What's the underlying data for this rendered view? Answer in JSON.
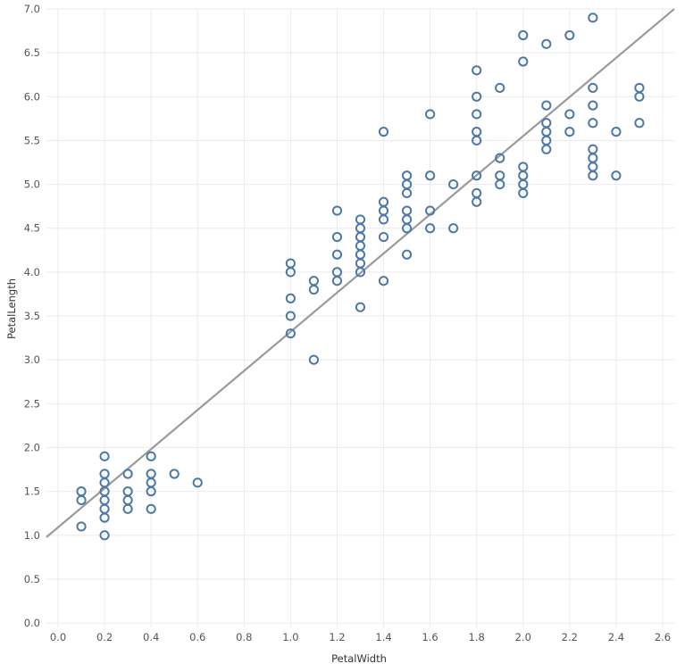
{
  "chart_data": {
    "type": "scatter",
    "title": "",
    "xlabel": "PetalWidth",
    "ylabel": "PetalLength",
    "xlim": [
      -0.05,
      2.65
    ],
    "ylim": [
      -0.05,
      7.0
    ],
    "x_ticks": [
      "0.0",
      "0.2",
      "0.4",
      "0.6",
      "0.8",
      "1.0",
      "1.2",
      "1.4",
      "1.6",
      "1.8",
      "2.0",
      "2.2",
      "2.4",
      "2.6"
    ],
    "y_ticks": [
      "0.0",
      "0.5",
      "1.0",
      "1.5",
      "2.0",
      "2.5",
      "3.0",
      "3.5",
      "4.0",
      "4.5",
      "5.0",
      "5.5",
      "6.0",
      "6.5",
      "7.0"
    ],
    "grid": true,
    "marker": "open-circle",
    "colors": {
      "points": "#4e79a7",
      "trend_line": "#9a9a9a",
      "grid": "#ebebeb"
    },
    "trend_line": {
      "slope": 2.23,
      "intercept": 1.09
    },
    "points": [
      [
        0.1,
        1.5
      ],
      [
        0.1,
        1.4
      ],
      [
        0.1,
        1.1
      ],
      [
        0.2,
        1.9
      ],
      [
        0.2,
        1.7
      ],
      [
        0.2,
        1.6
      ],
      [
        0.2,
        1.5
      ],
      [
        0.2,
        1.4
      ],
      [
        0.2,
        1.3
      ],
      [
        0.2,
        1.2
      ],
      [
        0.2,
        1.0
      ],
      [
        0.3,
        1.7
      ],
      [
        0.3,
        1.5
      ],
      [
        0.3,
        1.4
      ],
      [
        0.3,
        1.3
      ],
      [
        0.4,
        1.9
      ],
      [
        0.4,
        1.7
      ],
      [
        0.4,
        1.6
      ],
      [
        0.4,
        1.5
      ],
      [
        0.4,
        1.3
      ],
      [
        0.5,
        1.7
      ],
      [
        0.6,
        1.6
      ],
      [
        1.0,
        4.1
      ],
      [
        1.0,
        4.0
      ],
      [
        1.0,
        3.7
      ],
      [
        1.0,
        3.5
      ],
      [
        1.0,
        3.3
      ],
      [
        1.1,
        3.9
      ],
      [
        1.1,
        3.8
      ],
      [
        1.1,
        3.0
      ],
      [
        1.2,
        4.7
      ],
      [
        1.2,
        4.4
      ],
      [
        1.2,
        4.2
      ],
      [
        1.2,
        4.0
      ],
      [
        1.2,
        3.9
      ],
      [
        1.3,
        4.6
      ],
      [
        1.3,
        4.5
      ],
      [
        1.3,
        4.4
      ],
      [
        1.3,
        4.3
      ],
      [
        1.3,
        4.2
      ],
      [
        1.3,
        4.1
      ],
      [
        1.3,
        4.0
      ],
      [
        1.3,
        3.6
      ],
      [
        1.4,
        5.6
      ],
      [
        1.4,
        4.8
      ],
      [
        1.4,
        4.7
      ],
      [
        1.4,
        4.6
      ],
      [
        1.4,
        4.4
      ],
      [
        1.4,
        3.9
      ],
      [
        1.5,
        5.1
      ],
      [
        1.5,
        5.0
      ],
      [
        1.5,
        4.9
      ],
      [
        1.5,
        4.7
      ],
      [
        1.5,
        4.6
      ],
      [
        1.5,
        4.5
      ],
      [
        1.5,
        4.2
      ],
      [
        1.6,
        5.8
      ],
      [
        1.6,
        5.1
      ],
      [
        1.6,
        4.7
      ],
      [
        1.6,
        4.5
      ],
      [
        1.7,
        5.0
      ],
      [
        1.7,
        4.5
      ],
      [
        1.8,
        6.3
      ],
      [
        1.8,
        6.0
      ],
      [
        1.8,
        5.8
      ],
      [
        1.8,
        5.6
      ],
      [
        1.8,
        5.5
      ],
      [
        1.8,
        5.1
      ],
      [
        1.8,
        4.9
      ],
      [
        1.8,
        4.8
      ],
      [
        1.9,
        6.1
      ],
      [
        1.9,
        5.3
      ],
      [
        1.9,
        5.1
      ],
      [
        1.9,
        5.0
      ],
      [
        2.0,
        6.7
      ],
      [
        2.0,
        6.4
      ],
      [
        2.0,
        5.2
      ],
      [
        2.0,
        5.1
      ],
      [
        2.0,
        5.0
      ],
      [
        2.0,
        4.9
      ],
      [
        2.1,
        6.6
      ],
      [
        2.1,
        5.9
      ],
      [
        2.1,
        5.7
      ],
      [
        2.1,
        5.6
      ],
      [
        2.1,
        5.5
      ],
      [
        2.1,
        5.4
      ],
      [
        2.2,
        6.7
      ],
      [
        2.2,
        5.8
      ],
      [
        2.2,
        5.6
      ],
      [
        2.3,
        6.9
      ],
      [
        2.3,
        6.1
      ],
      [
        2.3,
        5.9
      ],
      [
        2.3,
        5.7
      ],
      [
        2.3,
        5.4
      ],
      [
        2.3,
        5.3
      ],
      [
        2.3,
        5.2
      ],
      [
        2.3,
        5.1
      ],
      [
        2.4,
        5.6
      ],
      [
        2.4,
        5.1
      ],
      [
        2.5,
        6.1
      ],
      [
        2.5,
        6.0
      ],
      [
        2.5,
        5.7
      ]
    ]
  }
}
